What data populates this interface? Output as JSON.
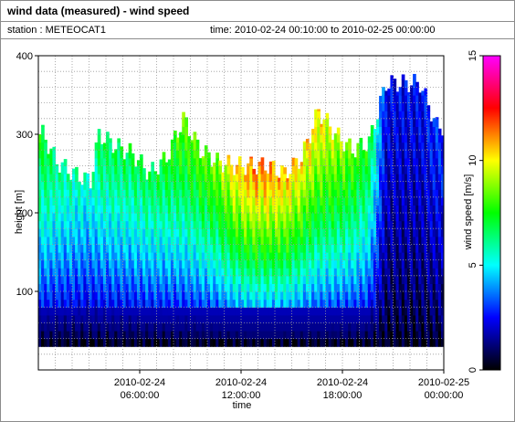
{
  "window": {
    "title": "wind data (measured) - wind speed",
    "station_label": "station : METEOCAT1",
    "time_range": "time: 2010-02-24 00:10:00 to 2010-02-25 00:00:00"
  },
  "chart_data": {
    "type": "heatmap",
    "title": "",
    "xlabel": "time",
    "ylabel": "height [m]",
    "colorbar_label": "wind speed [m/s]",
    "x_range_hours": [
      0,
      24
    ],
    "ylim": [
      0,
      400
    ],
    "colorbar_range": [
      0,
      15
    ],
    "x_ticks": [
      {
        "hours": 6,
        "line1": "2010-02-24",
        "line2": "06:00:00"
      },
      {
        "hours": 12,
        "line1": "2010-02-24",
        "line2": "12:00:00"
      },
      {
        "hours": 18,
        "line1": "2010-02-24",
        "line2": "18:00:00"
      },
      {
        "hours": 24,
        "line1": "2010-02-25",
        "line2": "00:00:00"
      }
    ],
    "y_ticks": [
      100,
      200,
      300,
      400
    ],
    "colorbar_ticks": [
      0,
      5,
      10,
      15
    ],
    "grid": true,
    "colormap": [
      "#000000",
      "#00007f",
      "#0000ff",
      "#0080ff",
      "#00ffff",
      "#00ff80",
      "#00ff00",
      "#80ff00",
      "#ffff00",
      "#ff8000",
      "#ff0000",
      "#ff0080",
      "#ff00ff"
    ],
    "profiles": [
      {
        "t": 0.2,
        "top": 300,
        "peak": 7.5
      },
      {
        "t": 1.0,
        "top": 265,
        "peak": 6.5
      },
      {
        "t": 2.0,
        "top": 250,
        "peak": 6.0
      },
      {
        "t": 3.0,
        "top": 240,
        "peak": 5.5
      },
      {
        "t": 3.5,
        "top": 300,
        "peak": 7.0
      },
      {
        "t": 4.5,
        "top": 285,
        "peak": 7.0
      },
      {
        "t": 5.5,
        "top": 275,
        "peak": 7.0
      },
      {
        "t": 6.5,
        "top": 250,
        "peak": 7.0
      },
      {
        "t": 7.5,
        "top": 270,
        "peak": 7.5
      },
      {
        "t": 8.5,
        "top": 320,
        "peak": 8.5
      },
      {
        "t": 9.5,
        "top": 280,
        "peak": 8.5
      },
      {
        "t": 10.5,
        "top": 265,
        "peak": 9.0
      },
      {
        "t": 11.5,
        "top": 260,
        "peak": 10.5
      },
      {
        "t": 12.5,
        "top": 260,
        "peak": 11.5
      },
      {
        "t": 13.5,
        "top": 260,
        "peak": 11.5
      },
      {
        "t": 14.5,
        "top": 250,
        "peak": 11.0
      },
      {
        "t": 15.5,
        "top": 270,
        "peak": 10.5
      },
      {
        "t": 16.5,
        "top": 330,
        "peak": 10.5
      },
      {
        "t": 17.5,
        "top": 300,
        "peak": 9.5
      },
      {
        "t": 18.5,
        "top": 280,
        "peak": 8.5
      },
      {
        "t": 19.5,
        "top": 290,
        "peak": 7.5
      },
      {
        "t": 20.5,
        "top": 365,
        "peak": 2.5
      },
      {
        "t": 21.5,
        "top": 365,
        "peak": 2.5
      },
      {
        "t": 22.5,
        "top": 365,
        "peak": 2.5
      },
      {
        "t": 23.5,
        "top": 310,
        "peak": 3.0
      }
    ]
  }
}
